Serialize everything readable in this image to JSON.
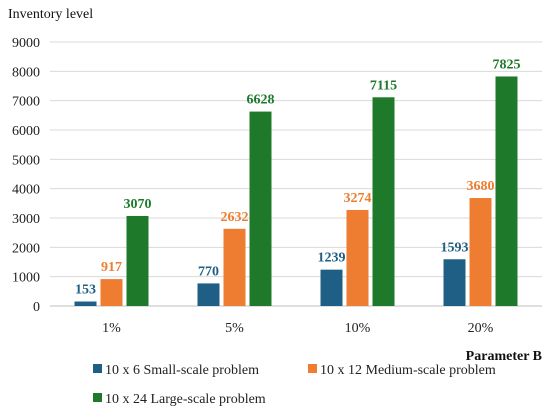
{
  "chart_data": {
    "type": "bar",
    "ylabel": "Inventory level",
    "xlabel": "Parameter B",
    "categories": [
      "1%",
      "5%",
      "10%",
      "20%"
    ],
    "ylim": [
      0,
      9000
    ],
    "yticks": [
      0,
      1000,
      2000,
      3000,
      4000,
      5000,
      6000,
      7000,
      8000,
      9000
    ],
    "grid": true,
    "legend_position": "bottom",
    "series": [
      {
        "name": "10 x 6 Small-scale problem",
        "color": "#1f5f86",
        "values": [
          153,
          770,
          1239,
          1593
        ]
      },
      {
        "name": "10 x 12 Medium-scale problem",
        "color": "#ee7d31",
        "values": [
          917,
          2632,
          3274,
          3680
        ]
      },
      {
        "name": "10 x 24 Large-scale problem",
        "color": "#1e7a2a",
        "values": [
          3070,
          6628,
          7115,
          7825
        ]
      }
    ]
  }
}
